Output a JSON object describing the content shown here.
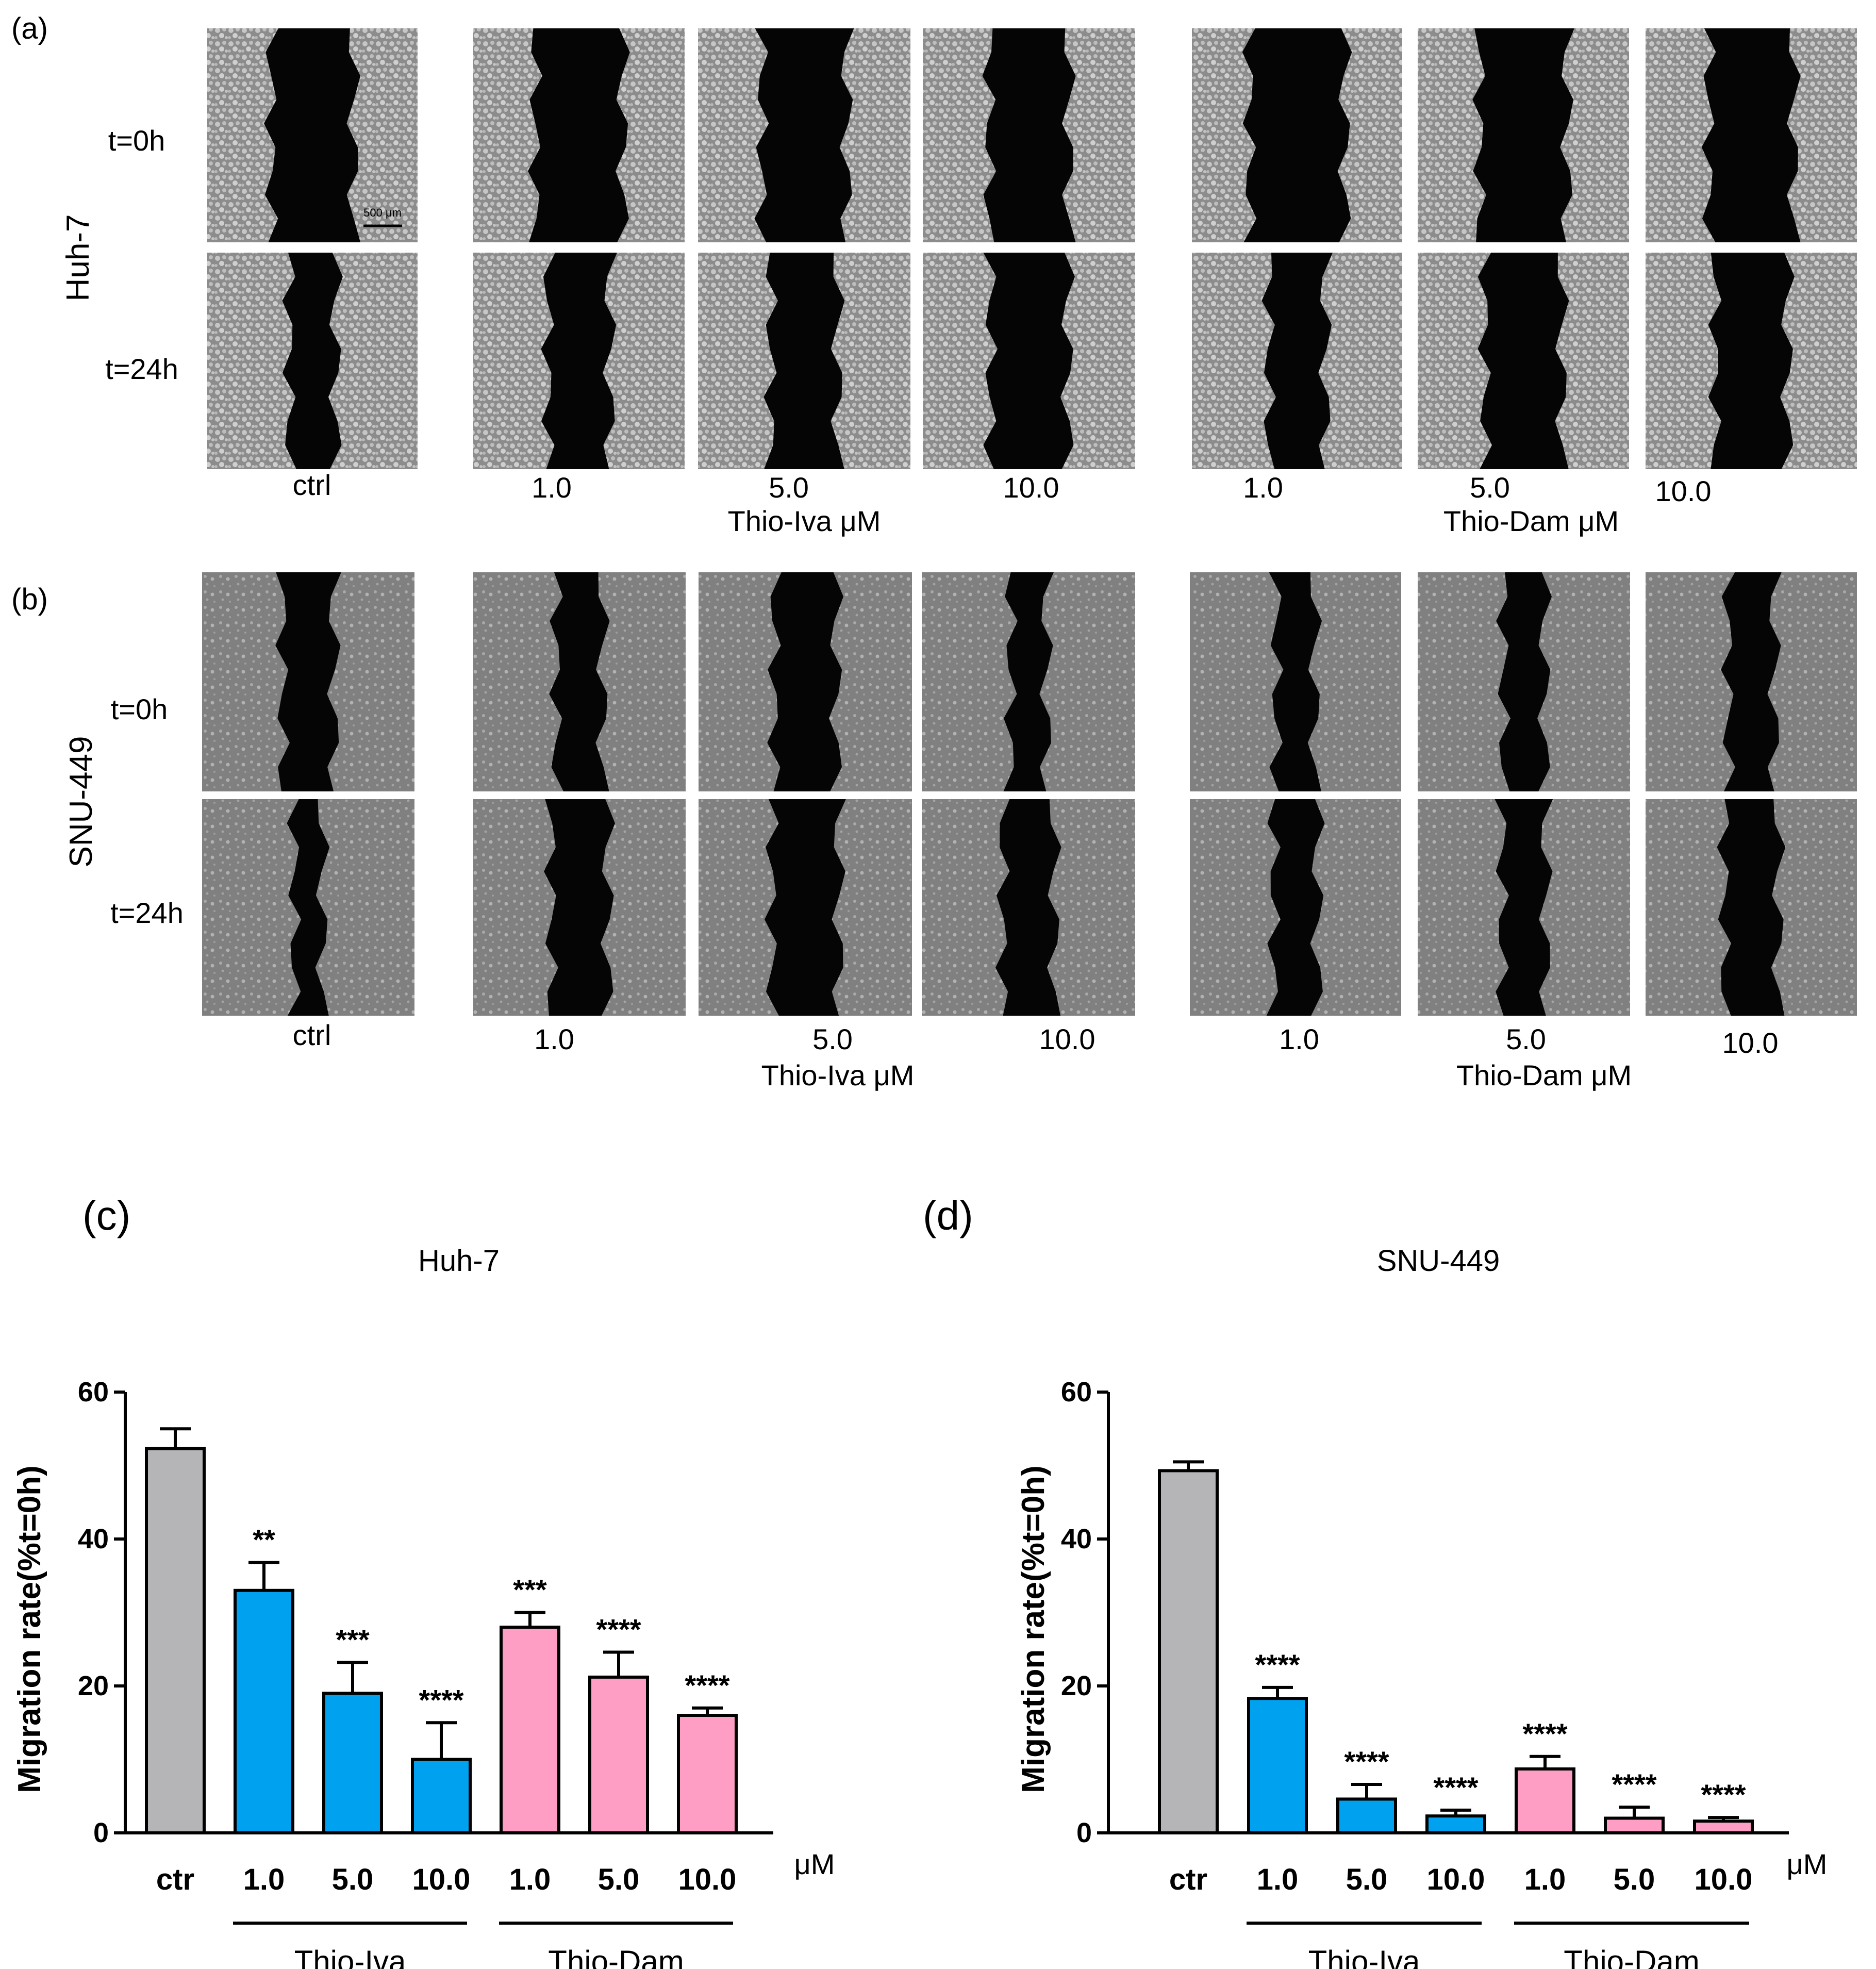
{
  "panel_a": {
    "letter": "(a)",
    "cell_line": "Huh-7",
    "row_labels": [
      "t=0h",
      "t=24h"
    ],
    "ctrl_label": "ctrl",
    "iva_doses": [
      "1.0",
      "5.0",
      "10.0"
    ],
    "iva_label": "Thio-Iva μM",
    "dam_doses": [
      "1.0",
      "5.0",
      "10.0"
    ],
    "dam_label": "Thio-Dam μM",
    "scale_bar": "500 μm"
  },
  "panel_b": {
    "letter": "(b)",
    "cell_line": "SNU-449",
    "row_labels": [
      "t=0h",
      "t=24h"
    ],
    "ctrl_label": "ctrl",
    "iva_doses": [
      "1.0",
      "5.0",
      "10.0"
    ],
    "iva_label": "Thio-Iva μM",
    "dam_doses": [
      "1.0",
      "5.0",
      "10.0"
    ],
    "dam_label": "Thio-Dam μM"
  },
  "colors": {
    "ctrl": "#b5b5b8",
    "iva": "#00a2ef",
    "dam": "#ff9ec4",
    "gap": "#050505"
  },
  "chart_data": [
    {
      "type": "bar",
      "letter": "(c)",
      "title": "Huh-7",
      "ylabel": "Migration rate(%t=0h)",
      "ylim": [
        0,
        60
      ],
      "yticks": [
        "0",
        "20",
        "40",
        "60"
      ],
      "unit": "μM",
      "categories": [
        "ctr",
        "1.0",
        "5.0",
        "10.0",
        "1.0",
        "5.0",
        "10.0"
      ],
      "values": [
        52.3,
        33.0,
        19.0,
        10.0,
        28.0,
        21.2,
        16.0
      ],
      "errors": [
        2.7,
        3.8,
        4.2,
        5.0,
        2.0,
        3.4,
        1.0
      ],
      "significance": [
        "",
        "**",
        "***",
        "****",
        "***",
        "****",
        "****"
      ],
      "groups": [
        "Thio-Iva",
        "Thio-Dam"
      ]
    },
    {
      "type": "bar",
      "letter": "(d)",
      "title": "SNU-449",
      "ylabel": "Migration rate(%t=0h)",
      "ylim": [
        0,
        60
      ],
      "yticks": [
        "0",
        "20",
        "40",
        "60"
      ],
      "unit": "μM",
      "categories": [
        "ctr",
        "1.0",
        "5.0",
        "10.0",
        "1.0",
        "5.0",
        "10.0"
      ],
      "values": [
        49.3,
        18.3,
        4.6,
        2.3,
        8.7,
        2.0,
        1.6
      ],
      "errors": [
        1.2,
        1.5,
        2.0,
        0.8,
        1.7,
        1.5,
        0.5
      ],
      "significance": [
        "",
        "****",
        "****",
        "****",
        "****",
        "****",
        "****"
      ],
      "groups": [
        "Thio-Iva",
        "Thio-Dam"
      ]
    }
  ]
}
